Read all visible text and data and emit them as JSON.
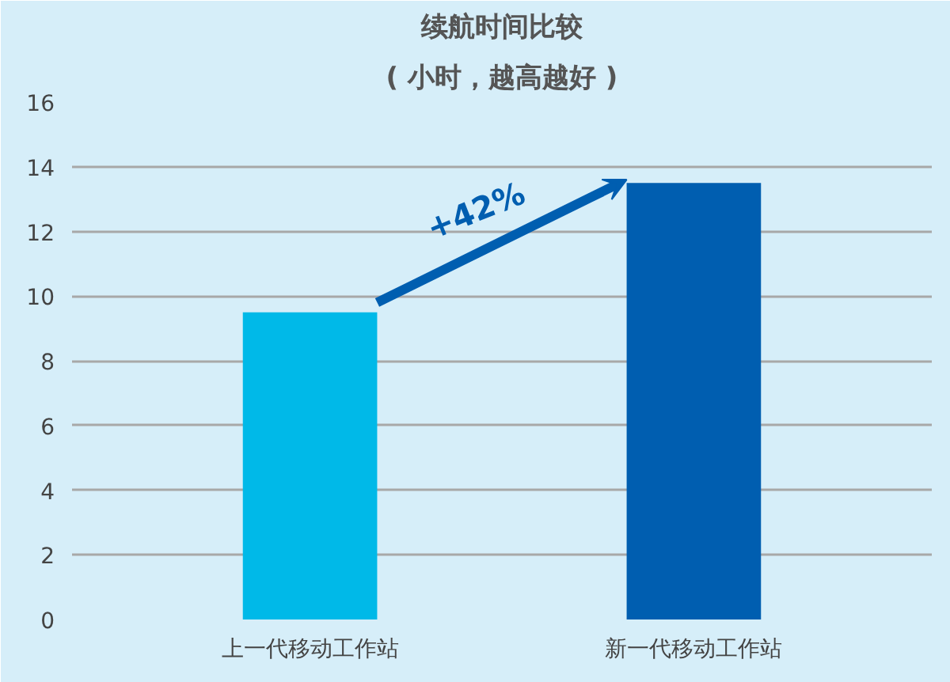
{
  "chart_data": {
    "type": "bar",
    "title": "续航时间比较",
    "subtitle": "( 小时，越高越好 )",
    "categories": [
      "上一代移动工作站",
      "新一代移动工作站"
    ],
    "values": [
      9.5,
      13.5
    ],
    "colors": [
      "#00b9e8",
      "#005eb0"
    ],
    "ylim": [
      0,
      16
    ],
    "yticks": [
      0,
      2,
      4,
      6,
      8,
      10,
      12,
      14,
      16
    ],
    "grid": "y",
    "annotations": [
      "+42%"
    ]
  }
}
